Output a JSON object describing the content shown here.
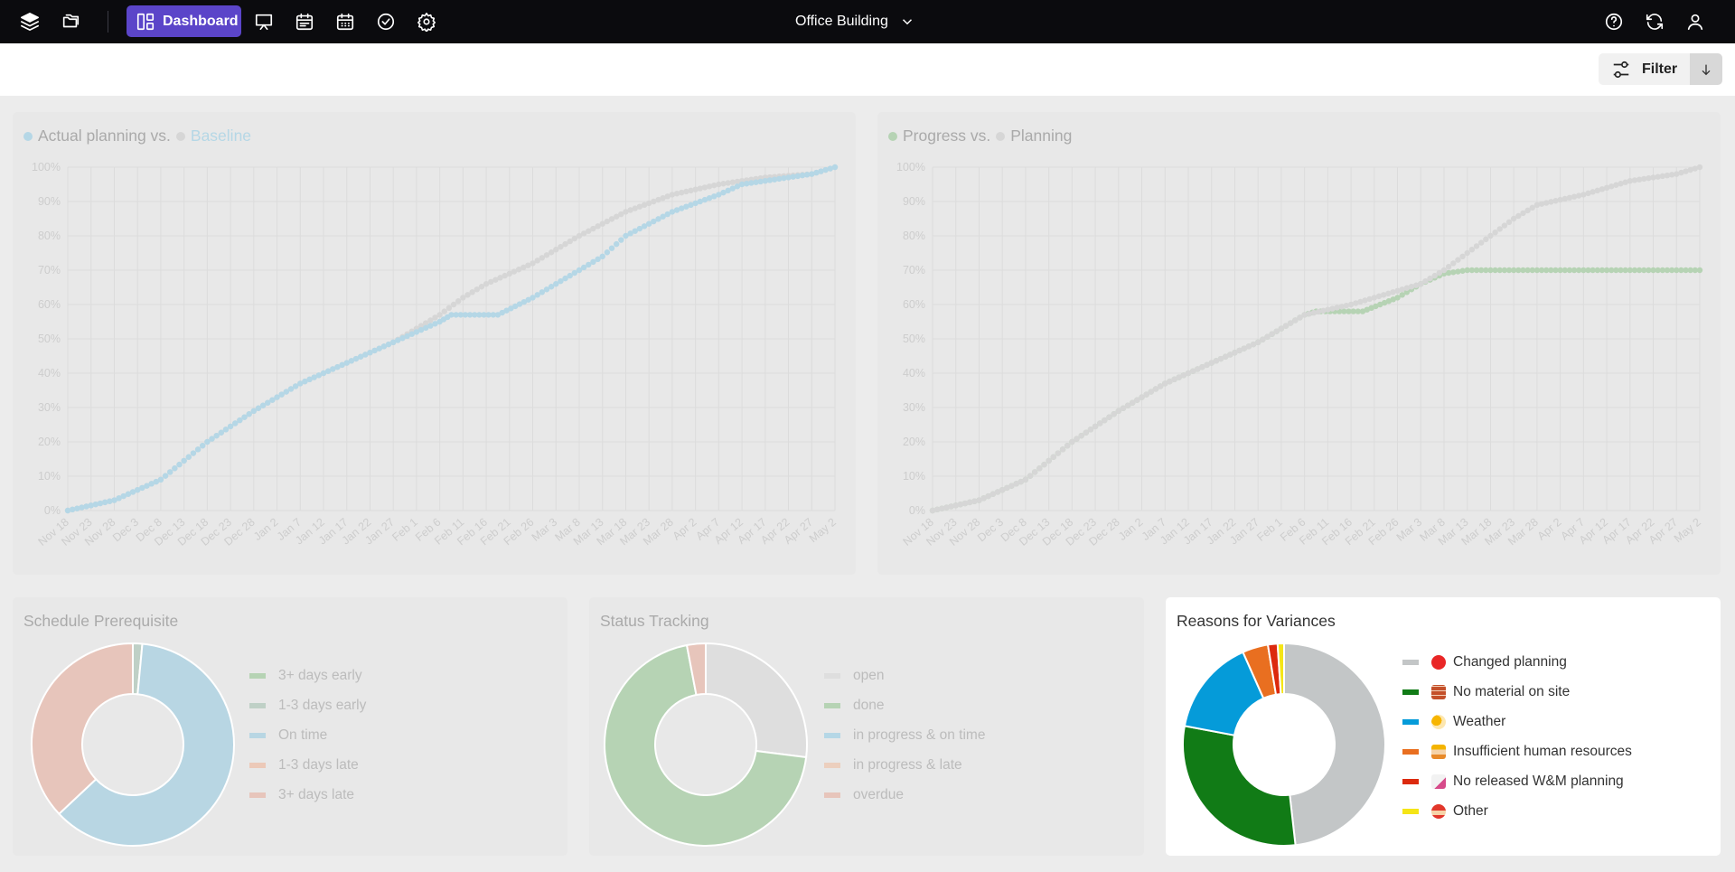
{
  "topbar": {
    "dashboard_label": "Dashboard",
    "project_name": "Office Building",
    "left_icons": [
      "layers-icon",
      "folders-icon"
    ],
    "nav_icons": [
      "presentation-icon",
      "calendar-list-icon",
      "calendar-grid-icon",
      "check-circle-icon",
      "gear-icon"
    ],
    "right_icons": [
      "help-icon",
      "refresh-icon",
      "user-icon"
    ]
  },
  "filterbar": {
    "filter_label": "Filter",
    "sort_icon": "arrow-down-icon"
  },
  "colors": {
    "baseline": "#b5d7e6",
    "actual_planning": "#c9d6dc",
    "planning": "#d6d6d6",
    "progress": "#b6d3b4",
    "grid": "#dcdcdc",
    "axis_text": "#cdcdcd"
  },
  "line_charts": {
    "x_ticks": [
      "Nov 18",
      "Nov 23",
      "Nov 28",
      "Dec 3",
      "Dec 8",
      "Dec 13",
      "Dec 18",
      "Dec 23",
      "Dec 28",
      "Jan 2",
      "Jan 7",
      "Jan 12",
      "Jan 17",
      "Jan 22",
      "Jan 27",
      "Feb 1",
      "Feb 6",
      "Feb 11",
      "Feb 16",
      "Feb 21",
      "Feb 26",
      "Mar 3",
      "Mar 8",
      "Mar 13",
      "Mar 18",
      "Mar 23",
      "Mar 28",
      "Apr 2",
      "Apr 7",
      "Apr 12",
      "Apr 17",
      "Apr 22",
      "Apr 27",
      "May 2"
    ],
    "y_ticks": [
      "0%",
      "10%",
      "20%",
      "30%",
      "40%",
      "50%",
      "60%",
      "70%",
      "80%",
      "90%",
      "100%"
    ]
  },
  "chart_data": [
    {
      "type": "line",
      "title_part1": "Actual planning vs.",
      "title_part2": "Baseline",
      "ylim": [
        0,
        100
      ],
      "grid": true,
      "series": [
        {
          "name": "Actual planning",
          "points": [
            [
              0,
              0
            ],
            [
              2,
              3
            ],
            [
              4,
              9
            ],
            [
              6,
              20
            ],
            [
              8,
              29
            ],
            [
              9,
              33
            ],
            [
              10,
              37
            ],
            [
              12,
              43
            ],
            [
              14,
              49
            ],
            [
              15,
              53
            ],
            [
              16,
              57
            ],
            [
              17,
              62
            ],
            [
              18,
              66
            ],
            [
              20,
              72
            ],
            [
              22,
              80
            ],
            [
              24,
              87
            ],
            [
              26,
              92
            ],
            [
              28,
              95
            ],
            [
              30,
              97
            ],
            [
              32,
              98
            ],
            [
              33,
              100
            ]
          ]
        },
        {
          "name": "Baseline",
          "points": [
            [
              0,
              0
            ],
            [
              2,
              3
            ],
            [
              4,
              9
            ],
            [
              6,
              20
            ],
            [
              8,
              29
            ],
            [
              9,
              33
            ],
            [
              10,
              37
            ],
            [
              12,
              43
            ],
            [
              14,
              49
            ],
            [
              16,
              55
            ],
            [
              16.5,
              57
            ],
            [
              17.5,
              57
            ],
            [
              18.5,
              57
            ],
            [
              20,
              62
            ],
            [
              22,
              70
            ],
            [
              23,
              74
            ],
            [
              24,
              80
            ],
            [
              26,
              87
            ],
            [
              28,
              92
            ],
            [
              29,
              95
            ],
            [
              30,
              96
            ],
            [
              32,
              98
            ],
            [
              33,
              100
            ]
          ]
        }
      ]
    },
    {
      "type": "line",
      "title_part1": "Progress vs.",
      "title_part2": "Planning",
      "ylim": [
        0,
        100
      ],
      "grid": true,
      "series": [
        {
          "name": "Progress",
          "points": [
            [
              0,
              0
            ],
            [
              2,
              3
            ],
            [
              4,
              9
            ],
            [
              6,
              20
            ],
            [
              8,
              29
            ],
            [
              9,
              33
            ],
            [
              10,
              37
            ],
            [
              12,
              43
            ],
            [
              14,
              49
            ],
            [
              15,
              53
            ],
            [
              16,
              57
            ],
            [
              16.5,
              58
            ],
            [
              17.5,
              58
            ],
            [
              18.5,
              58
            ],
            [
              20,
              62
            ],
            [
              21,
              66
            ],
            [
              22,
              69
            ],
            [
              23,
              70
            ],
            [
              33,
              70
            ]
          ]
        },
        {
          "name": "Planning",
          "points": [
            [
              0,
              0
            ],
            [
              2,
              3
            ],
            [
              4,
              9
            ],
            [
              6,
              20
            ],
            [
              8,
              29
            ],
            [
              9,
              33
            ],
            [
              10,
              37
            ],
            [
              12,
              43
            ],
            [
              14,
              49
            ],
            [
              15,
              53
            ],
            [
              16,
              57
            ],
            [
              18,
              60
            ],
            [
              20,
              64
            ],
            [
              21,
              66
            ],
            [
              22,
              70
            ],
            [
              23,
              75
            ],
            [
              24,
              80
            ],
            [
              25,
              85
            ],
            [
              26,
              89
            ],
            [
              28,
              92
            ],
            [
              30,
              96
            ],
            [
              32,
              98
            ],
            [
              33,
              100
            ]
          ]
        }
      ]
    },
    {
      "type": "pie",
      "title": "Schedule Prerequisite",
      "labels": [
        "3+ days early",
        "1-3 days early",
        "On time",
        "1-3 days late",
        "3+ days late"
      ],
      "values": [
        0,
        1.5,
        61.5,
        0,
        37
      ],
      "colors": [
        "#b6d3b4",
        "#bfd0c6",
        "#b8d6e3",
        "#ecc9b8",
        "#e7c5bb"
      ]
    },
    {
      "type": "pie",
      "title": "Status Tracking",
      "labels": [
        "open",
        "done",
        "in progress & on time",
        "in progress & late",
        "overdue"
      ],
      "values": [
        27,
        70,
        0,
        0,
        3
      ],
      "colors": [
        "#dedede",
        "#b6d3b4",
        "#b5d7e6",
        "#eccfbe",
        "#e7c5bb"
      ]
    },
    {
      "type": "pie",
      "title": "Reasons for Variances",
      "labels": [
        "Changed planning",
        "No material on site",
        "Weather",
        "Insufficient human resources",
        "No released W&M planning",
        "Other"
      ],
      "values": [
        47,
        29,
        15,
        4,
        1.5,
        1
      ],
      "colors": [
        "#c3c6c7",
        "#117b16",
        "#059bd9",
        "#e96f20",
        "#dc2a0e",
        "#f5e516"
      ],
      "icons": [
        "red-circle-icon",
        "brick-icon",
        "weather-icon",
        "worker-icon",
        "document-icon",
        "other-person-icon"
      ]
    }
  ]
}
